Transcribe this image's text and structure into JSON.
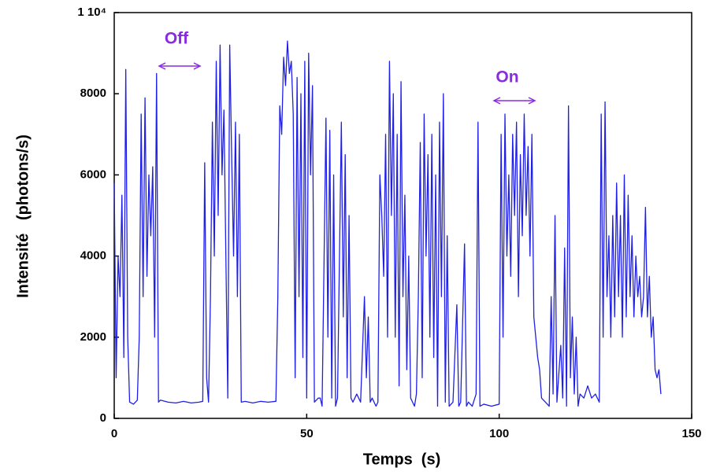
{
  "chart_data": {
    "type": "line",
    "xlabel": "Temps  (s)",
    "ylabel": "Intensité   (photons/s)",
    "color": "#1f1fe6",
    "annotations": [
      "Off",
      "On"
    ],
    "annotation_color": "#8a2be2",
    "xlim": [
      0,
      150
    ],
    "ylim": [
      0,
      10000
    ],
    "xticks": [
      0,
      50,
      100,
      150
    ],
    "yticks": [
      0,
      2000,
      4000,
      6000,
      8000,
      {
        "value": 10000,
        "label": "1 10⁴"
      }
    ],
    "x": [
      0,
      0.5,
      1,
      1.5,
      2,
      2.5,
      3,
      3.5,
      4,
      5,
      6,
      6.5,
      7,
      7.5,
      8,
      8.5,
      9,
      9.5,
      10,
      10.5,
      11,
      11.5,
      12,
      14,
      16,
      18,
      20,
      22,
      23,
      23.5,
      24,
      24.5,
      25,
      25.5,
      26,
      26.5,
      27,
      27.5,
      28,
      28.5,
      29,
      29.5,
      30,
      30.5,
      31,
      31.5,
      32,
      32.5,
      33,
      34,
      36,
      38,
      40,
      42,
      42.5,
      43,
      43.5,
      44,
      44.5,
      45,
      45.5,
      46,
      46.5,
      47,
      47.5,
      48,
      48.5,
      49,
      49.5,
      50,
      50.5,
      51,
      51.5,
      52,
      53,
      53.5,
      54,
      55,
      55.5,
      56,
      56.5,
      57,
      57.5,
      58,
      59,
      59.5,
      60,
      60.5,
      61,
      61.5,
      62,
      63,
      64,
      65,
      65.5,
      66,
      66.5,
      67,
      68,
      68.5,
      69,
      69.5,
      70,
      70.5,
      71,
      71.5,
      72,
      72.5,
      73,
      73.5,
      74,
      74.5,
      75,
      75.5,
      76,
      76.5,
      77,
      78,
      78.5,
      79,
      79.5,
      80,
      80.5,
      81,
      81.5,
      82,
      82.5,
      83,
      83.5,
      84,
      84.5,
      85,
      85.5,
      86,
      86.5,
      87,
      88,
      89,
      89.5,
      90,
      91,
      91.5,
      92,
      93,
      94,
      94.5,
      95,
      96,
      98,
      100,
      100.5,
      101,
      101.5,
      102,
      102.5,
      103,
      103.5,
      104,
      104.5,
      105,
      105.5,
      106,
      106.5,
      107,
      107.5,
      108,
      108.5,
      109,
      109.5,
      110,
      110.5,
      111,
      112,
      113,
      113.5,
      114,
      114.5,
      115,
      116,
      116.5,
      117,
      117.5,
      118,
      118.5,
      119,
      119.5,
      120,
      120.5,
      121,
      122,
      123,
      124,
      125,
      126,
      126.5,
      127,
      127.5,
      128,
      128.5,
      129,
      129.5,
      130,
      130.5,
      131,
      131.5,
      132,
      132.5,
      133,
      133.5,
      134,
      134.5,
      135,
      135.5,
      136,
      136.5,
      137,
      137.5,
      138,
      138.5,
      139,
      139.5,
      140,
      140.5,
      141,
      141.5,
      142
    ],
    "values": [
      5800,
      1000,
      4000,
      3000,
      5500,
      1500,
      8600,
      2000,
      400,
      350,
      450,
      2000,
      7500,
      3000,
      7900,
      3500,
      6000,
      4500,
      6200,
      2000,
      8500,
      400,
      450,
      400,
      380,
      420,
      380,
      400,
      420,
      6300,
      1000,
      400,
      3000,
      7300,
      4000,
      8800,
      5000,
      9200,
      6000,
      7600,
      4000,
      500,
      9200,
      6500,
      4000,
      7300,
      3000,
      7000,
      400,
      420,
      380,
      420,
      400,
      420,
      3000,
      7700,
      7000,
      8900,
      8200,
      9300,
      8500,
      8800,
      7500,
      1000,
      8400,
      3000,
      8000,
      1500,
      8800,
      500,
      9000,
      6000,
      8200,
      400,
      500,
      500,
      300,
      7400,
      2000,
      7100,
      500,
      6000,
      300,
      500,
      7300,
      2500,
      6500,
      1000,
      5000,
      500,
      400,
      600,
      400,
      3000,
      1000,
      2500,
      400,
      500,
      300,
      400,
      6000,
      5000,
      3500,
      7000,
      2000,
      8800,
      5000,
      8000,
      2000,
      7000,
      800,
      8300,
      3000,
      5500,
      1200,
      4000,
      500,
      300,
      600,
      3000,
      6800,
      1000,
      7500,
      4000,
      6500,
      2000,
      7000,
      1500,
      6000,
      300,
      7300,
      3000,
      8000,
      400,
      4500,
      300,
      400,
      2800,
      300,
      400,
      4300,
      300,
      400,
      300,
      600,
      7300,
      300,
      350,
      300,
      350,
      7000,
      2000,
      7500,
      4000,
      6000,
      3500,
      7000,
      5000,
      7300,
      3000,
      6500,
      4500,
      7500,
      5000,
      6700,
      4000,
      7000,
      2500,
      2000,
      1500,
      1200,
      500,
      400,
      300,
      3000,
      600,
      5000,
      400,
      1800,
      500,
      4200,
      300,
      7700,
      1000,
      2500,
      600,
      2000,
      300,
      600,
      500,
      800,
      500,
      600,
      400,
      7500,
      2000,
      7800,
      3000,
      4500,
      2000,
      5000,
      2500,
      5800,
      3000,
      5000,
      2000,
      6000,
      2500,
      5500,
      3000,
      4500,
      2500,
      4000,
      3000,
      3500,
      2500,
      3000,
      5200,
      2500,
      3500,
      2000,
      2500,
      1200,
      1000,
      1200,
      600
    ]
  }
}
